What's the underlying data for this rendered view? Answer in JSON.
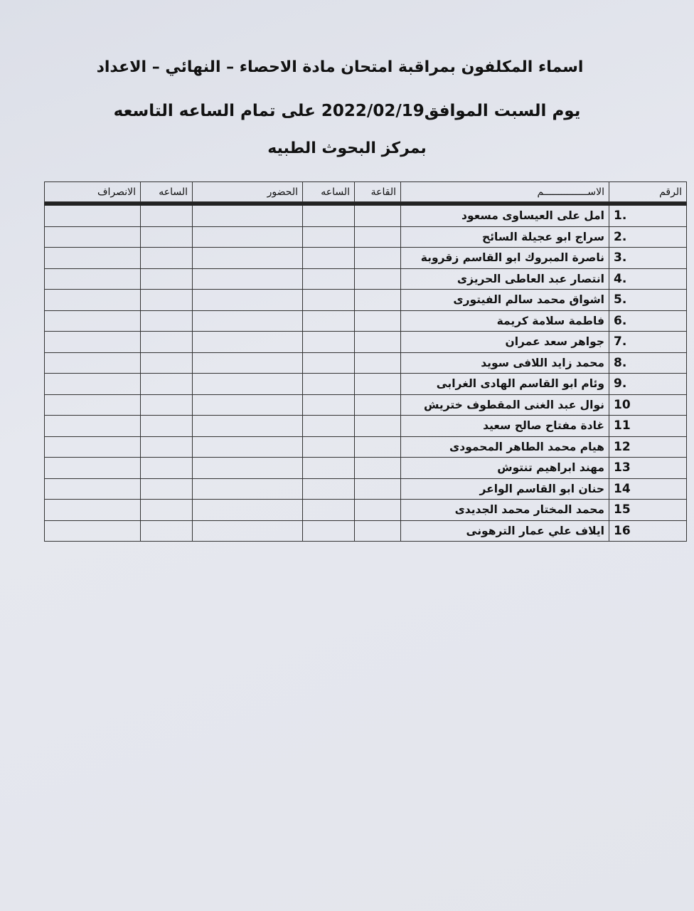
{
  "header": {
    "line1": "اسماء المكلفون بمراقبة امتحان مادة الاحصاء – النهائي  – الاعداد",
    "line2": "يوم السبت  الموافق2022/02/19 على تمام الساعه التاسعه",
    "line3": "بمركز البحوث الطبيه"
  },
  "table": {
    "columns": [
      "الرقم",
      "الاســـــــــــــــم",
      "القاعة",
      "الساعه",
      "الحضور",
      "الساعه",
      "الانصراف"
    ],
    "rows": [
      {
        "num": "1.",
        "name": "امل على العيساوى مسعود"
      },
      {
        "num": "2.",
        "name": "سراج ابو عجيلة السائح"
      },
      {
        "num": "3.",
        "name": "ناصرة المبروك ابو القاسم زقروبة"
      },
      {
        "num": "4.",
        "name": "انتصار عبد العاطى الحريزى"
      },
      {
        "num": "5.",
        "name": "اشواق محمد سالم الفيتورى"
      },
      {
        "num": "6.",
        "name": "فاطمة سلامة كريمة"
      },
      {
        "num": "7.",
        "name": "جواهر سعد عمران"
      },
      {
        "num": "8.",
        "name": "محمد زايد اللافى سويد"
      },
      {
        "num": "9.",
        "name": "وئام ابو القاسم الهادى الغرابى"
      },
      {
        "num": "10",
        "name": "نوال عبد الغنى المقطوف ختريش"
      },
      {
        "num": "11",
        "name": "غادة مفتاح صالح سعيد"
      },
      {
        "num": "12",
        "name": "هيام محمد الطاهر المحمودى"
      },
      {
        "num": "13",
        "name": "مهند ابراهيم تنتوش"
      },
      {
        "num": "14",
        "name": "حنان ابو القاسم الواعر"
      },
      {
        "num": "15",
        "name": "محمد المختار محمد الجديدى"
      },
      {
        "num": "16",
        "name": "ايلاف علي عمار الترهونى"
      }
    ]
  }
}
